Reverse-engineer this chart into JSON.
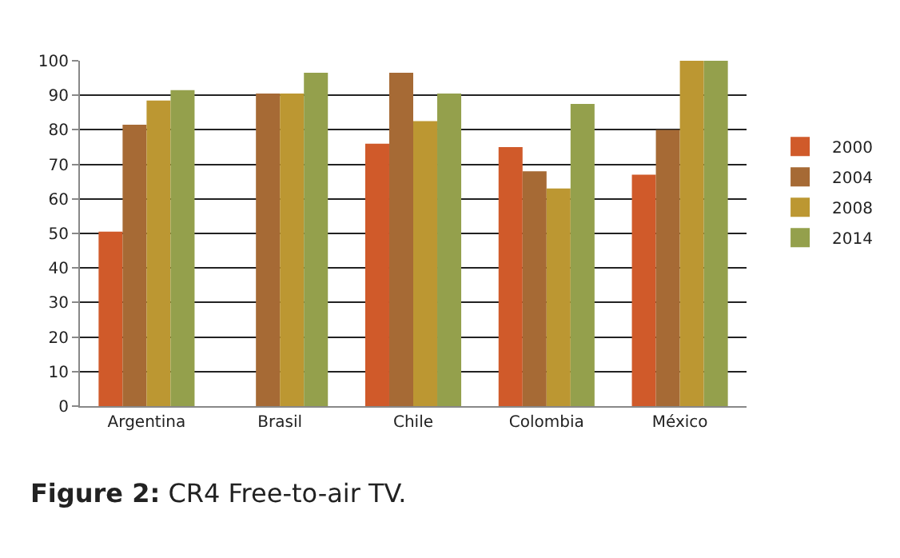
{
  "chart_data": {
    "type": "bar",
    "categories": [
      "Argentina",
      "Brasil",
      "Chile",
      "Colombia",
      "México"
    ],
    "series": [
      {
        "name": "2000",
        "color": "#d05a2a",
        "values": [
          50.5,
          null,
          76,
          75,
          67
        ]
      },
      {
        "name": "2004",
        "color": "#a66a35",
        "values": [
          81.5,
          90.5,
          96.5,
          68,
          80
        ]
      },
      {
        "name": "2008",
        "color": "#bc9732",
        "values": [
          88.5,
          90.5,
          82.5,
          63,
          100
        ]
      },
      {
        "name": "2014",
        "color": "#94a04c",
        "values": [
          91.5,
          96.5,
          90.5,
          87.5,
          100
        ]
      }
    ],
    "ylim": [
      0,
      100
    ],
    "yticks": [
      0,
      10,
      20,
      30,
      40,
      50,
      60,
      70,
      80,
      90,
      100
    ],
    "grid": "y",
    "legend": "right",
    "annotations": [
      "Figure 2: CR4 Free-to-air TV."
    ]
  }
}
